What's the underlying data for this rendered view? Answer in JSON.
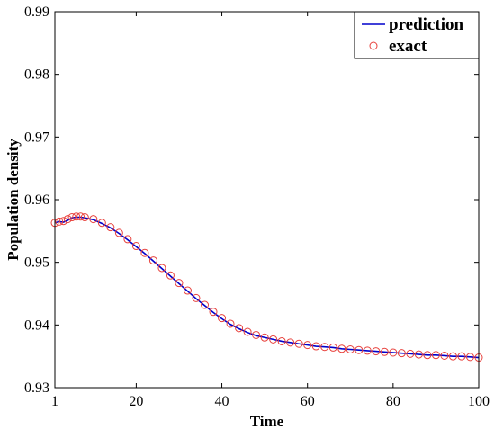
{
  "chart_data": {
    "type": "line",
    "xlabel": "Time",
    "ylabel": "Population density",
    "xlim": [
      1,
      100
    ],
    "ylim": [
      0.93,
      0.99
    ],
    "x_ticks": [
      1,
      20,
      40,
      60,
      80,
      100
    ],
    "y_ticks": [
      0.93,
      0.94,
      0.95,
      0.96,
      0.97,
      0.98,
      0.99
    ],
    "grid": false,
    "legend_position": "top-right",
    "series": [
      {
        "name": "prediction",
        "style": "line",
        "color": "#0000cc",
        "x": [
          1,
          2,
          3,
          4,
          5,
          6,
          7,
          8,
          10,
          12,
          14,
          16,
          18,
          20,
          22,
          24,
          26,
          28,
          30,
          32,
          34,
          36,
          38,
          40,
          42,
          44,
          46,
          48,
          50,
          52,
          54,
          56,
          58,
          60,
          62,
          64,
          66,
          68,
          70,
          72,
          74,
          76,
          78,
          80,
          82,
          84,
          86,
          88,
          90,
          92,
          94,
          96,
          98,
          100
        ],
        "y": [
          0.9563,
          0.9565,
          0.9564,
          0.9567,
          0.9571,
          0.9572,
          0.9572,
          0.9571,
          0.9568,
          0.9562,
          0.9555,
          0.9546,
          0.9536,
          0.9525,
          0.9514,
          0.9502,
          0.949,
          0.9478,
          0.9466,
          0.9454,
          0.9442,
          0.9431,
          0.942,
          0.941,
          0.9401,
          0.9394,
          0.9388,
          0.9383,
          0.938,
          0.9377,
          0.9374,
          0.9372,
          0.937,
          0.9368,
          0.9366,
          0.9365,
          0.9364,
          0.9362,
          0.9361,
          0.936,
          0.9359,
          0.9358,
          0.9357,
          0.9356,
          0.9355,
          0.9354,
          0.9353,
          0.9352,
          0.9352,
          0.9351,
          0.935,
          0.935,
          0.9349,
          0.9348
        ]
      },
      {
        "name": "exact",
        "style": "markers",
        "color": "#e8413c",
        "x": [
          1,
          2,
          3,
          4,
          5,
          6,
          7,
          8,
          10,
          12,
          14,
          16,
          18,
          20,
          22,
          24,
          26,
          28,
          30,
          32,
          34,
          36,
          38,
          40,
          42,
          44,
          46,
          48,
          50,
          52,
          54,
          56,
          58,
          60,
          62,
          64,
          66,
          68,
          70,
          72,
          74,
          76,
          78,
          80,
          82,
          84,
          86,
          88,
          90,
          92,
          94,
          96,
          98,
          100
        ],
        "y": [
          0.9563,
          0.9565,
          0.9566,
          0.9569,
          0.9572,
          0.9573,
          0.9573,
          0.9572,
          0.9569,
          0.9563,
          0.9556,
          0.9547,
          0.9537,
          0.9526,
          0.9515,
          0.9503,
          0.9491,
          0.9479,
          0.9467,
          0.9455,
          0.9443,
          0.9432,
          0.9421,
          0.9411,
          0.9402,
          0.9395,
          0.9389,
          0.9384,
          0.938,
          0.9377,
          0.9374,
          0.9372,
          0.937,
          0.9368,
          0.9366,
          0.9365,
          0.9364,
          0.9362,
          0.9361,
          0.936,
          0.9359,
          0.9358,
          0.9357,
          0.9356,
          0.9355,
          0.9354,
          0.9353,
          0.9352,
          0.9352,
          0.9351,
          0.935,
          0.935,
          0.9349,
          0.9348
        ]
      }
    ]
  }
}
